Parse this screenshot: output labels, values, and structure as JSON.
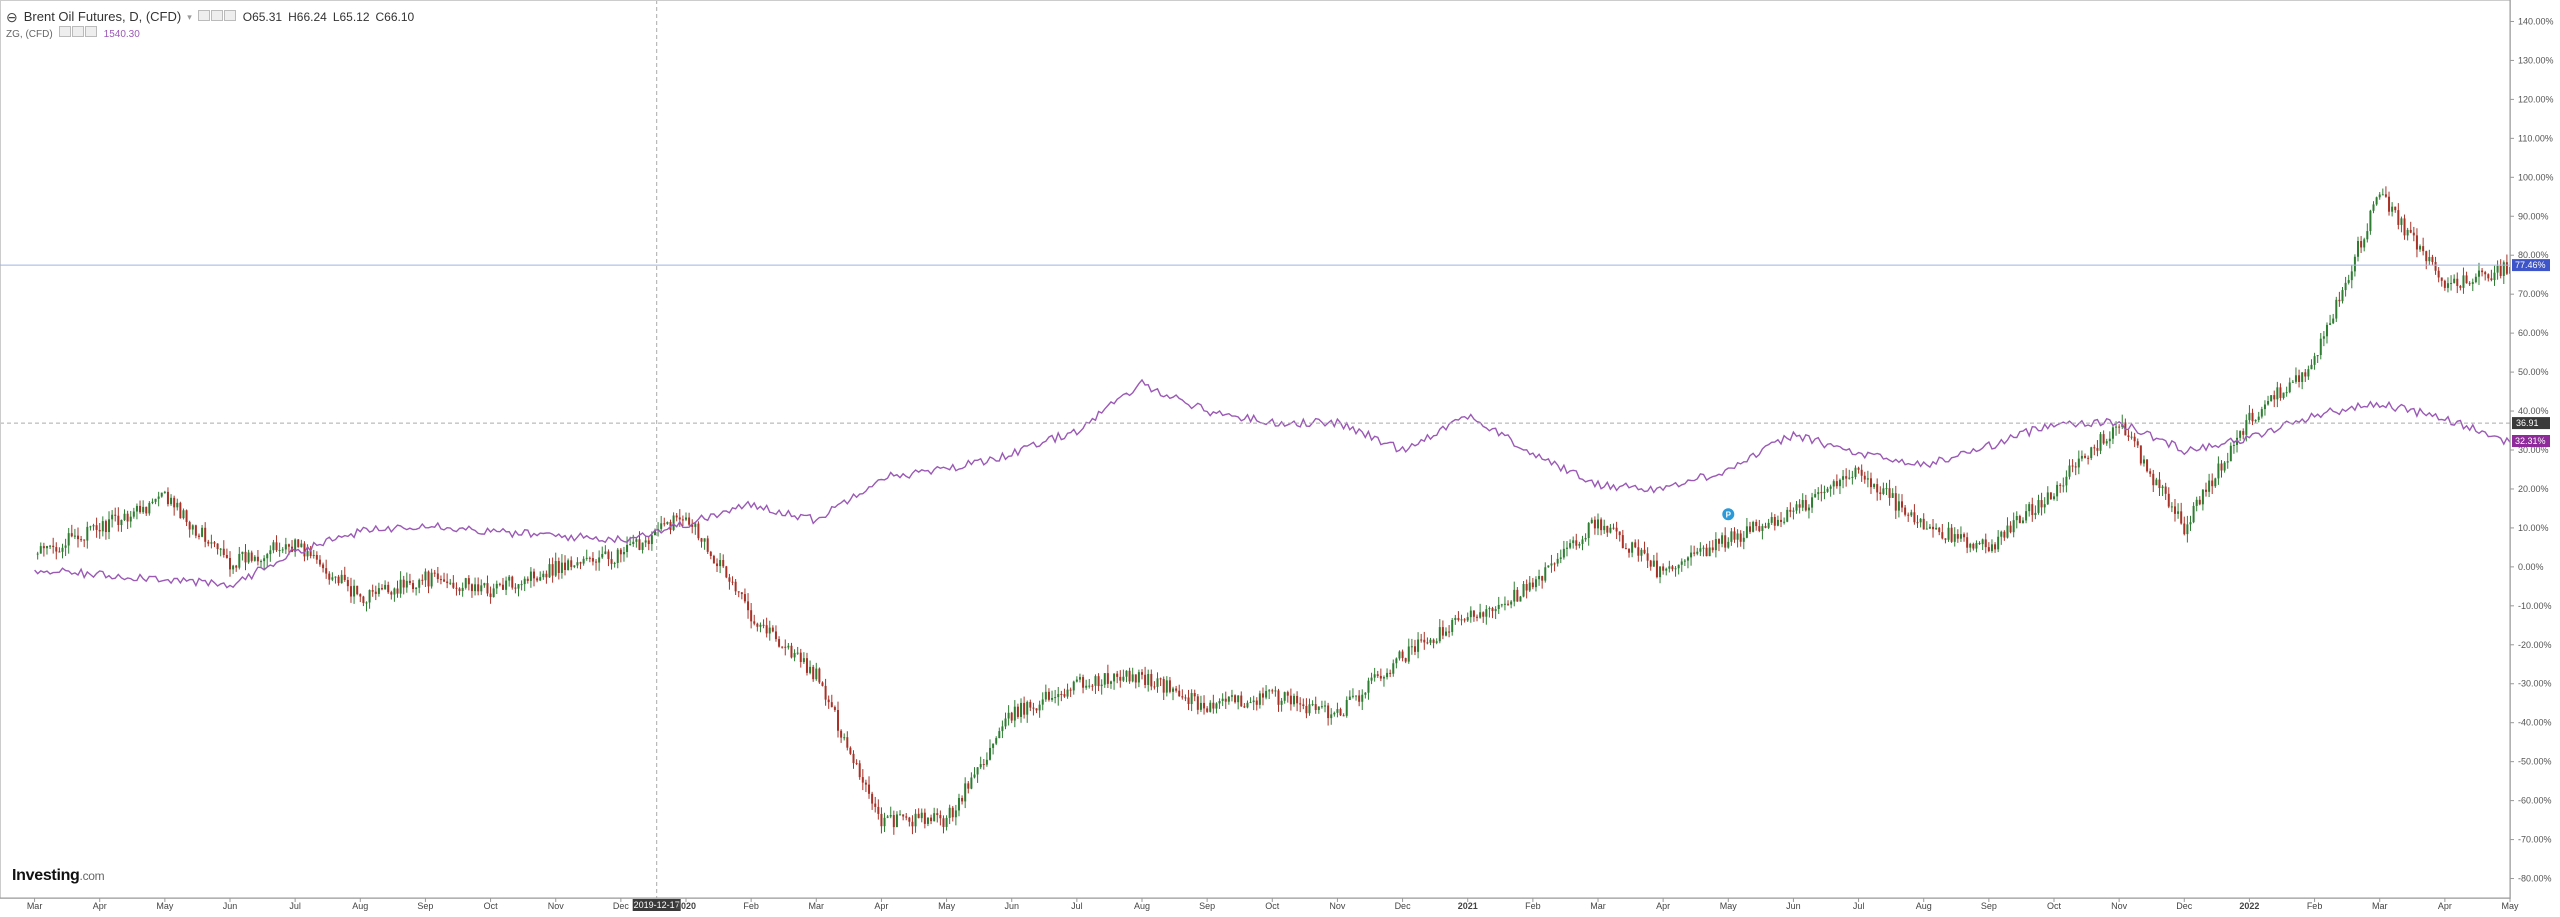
{
  "legend": {
    "main_title": "Brent Oil Futures, D, (CFD)",
    "open": "O65.31",
    "high": "H66.24",
    "low": "L65.12",
    "close": "C66.10",
    "compare_title": "ZG, (CFD)",
    "compare_value": "1540.30"
  },
  "brand": {
    "name": "Investing",
    "suffix": ".com"
  },
  "colors": {
    "up_candle": "#2e7d32",
    "down_candle": "#a83228",
    "compare_line": "#9b59b6",
    "tag_blue": "#3d55c8",
    "tag_dark": "#3a3a3a",
    "tag_purple": "#8e2a9a",
    "event_marker": "#2b9ad8"
  },
  "crosshair": {
    "date_label": "2019-12-17",
    "value_label": "36.91"
  },
  "price_tags": {
    "main": "77.46%",
    "compare": "32.31%"
  },
  "event_marker": {
    "label": "P"
  },
  "chart_data": {
    "type": "line",
    "y_axis_unit": "%",
    "ylim": [
      -85,
      145
    ],
    "yticks": [
      -80,
      -70,
      -60,
      -50,
      -40,
      -30,
      -20,
      -10,
      0,
      10,
      20,
      30,
      40,
      50,
      60,
      70,
      80,
      90,
      100,
      110,
      120,
      130,
      140
    ],
    "ytick_labels": [
      "-80.00%",
      "-70.00%",
      "-60.00%",
      "-50.00%",
      "-40.00%",
      "-30.00%",
      "-20.00%",
      "-10.00%",
      "0.00%",
      "10.00%",
      "20.00%",
      "30.00%",
      "40.00%",
      "50.00%",
      "60.00%",
      "70.00%",
      "80.00%",
      "90.00%",
      "100.00%",
      "110.00%",
      "120.00%",
      "130.00%",
      "140.00%"
    ],
    "xticks": [
      "Mar",
      "Apr",
      "May",
      "Jun",
      "Jul",
      "Aug",
      "Sep",
      "Oct",
      "Nov",
      "Dec",
      "2020",
      "Feb",
      "Mar",
      "Apr",
      "May",
      "Jun",
      "Jul",
      "Aug",
      "Sep",
      "Oct",
      "Nov",
      "Dec",
      "2021",
      "Feb",
      "Mar",
      "Apr",
      "May",
      "Jun",
      "Jul",
      "Aug",
      "Sep",
      "Oct",
      "Nov",
      "Dec",
      "2022",
      "Feb",
      "Mar",
      "Apr",
      "May"
    ],
    "x_range": [
      "2019-03",
      "2022-05"
    ],
    "series": [
      {
        "style": "candlestick",
        "x": [
          "2019-03",
          "2019-04",
          "2019-05",
          "2019-06",
          "2019-07",
          "2019-08",
          "2019-09",
          "2019-10",
          "2019-11",
          "2019-12",
          "2020-01",
          "2020-02",
          "2020-03",
          "2020-04",
          "2020-05",
          "2020-06",
          "2020-07",
          "2020-08",
          "2020-09",
          "2020-10",
          "2020-11",
          "2020-12",
          "2021-01",
          "2021-02",
          "2021-03",
          "2021-04",
          "2021-05",
          "2021-06",
          "2021-07",
          "2021-08",
          "2021-09",
          "2021-10",
          "2021-11",
          "2021-12",
          "2022-01",
          "2022-02",
          "2022-03",
          "2022-04",
          "2022-05"
        ],
        "values": [
          3,
          10,
          18,
          1,
          6,
          -8,
          -3,
          -6,
          0,
          3,
          14,
          -12,
          -28,
          -65,
          -65,
          -38,
          -30,
          -28,
          -36,
          -33,
          -38,
          -23,
          -13,
          -5,
          12,
          -2,
          7,
          14,
          25,
          10,
          5,
          20,
          37,
          10,
          38,
          53,
          96,
          72,
          77
        ]
      },
      {
        "style": "line",
        "x": [
          "2019-03",
          "2019-04",
          "2019-05",
          "2019-06",
          "2019-07",
          "2019-08",
          "2019-09",
          "2019-10",
          "2019-11",
          "2019-12",
          "2020-01",
          "2020-02",
          "2020-03",
          "2020-04",
          "2020-05",
          "2020-06",
          "2020-07",
          "2020-08",
          "2020-09",
          "2020-10",
          "2020-11",
          "2020-12",
          "2021-01",
          "2021-02",
          "2021-03",
          "2021-04",
          "2021-05",
          "2021-06",
          "2021-07",
          "2021-08",
          "2021-09",
          "2021-10",
          "2021-11",
          "2021-12",
          "2022-01",
          "2022-02",
          "2022-03",
          "2022-04",
          "2022-05"
        ],
        "values": [
          -1,
          -2,
          -3,
          -5,
          4,
          9,
          11,
          9,
          8,
          7,
          11,
          16,
          12,
          23,
          25,
          29,
          35,
          47,
          40,
          37,
          37,
          30,
          39,
          29,
          21,
          20,
          25,
          34,
          29,
          26,
          31,
          37,
          37,
          30,
          33,
          39,
          42,
          38,
          32
        ]
      }
    ]
  }
}
